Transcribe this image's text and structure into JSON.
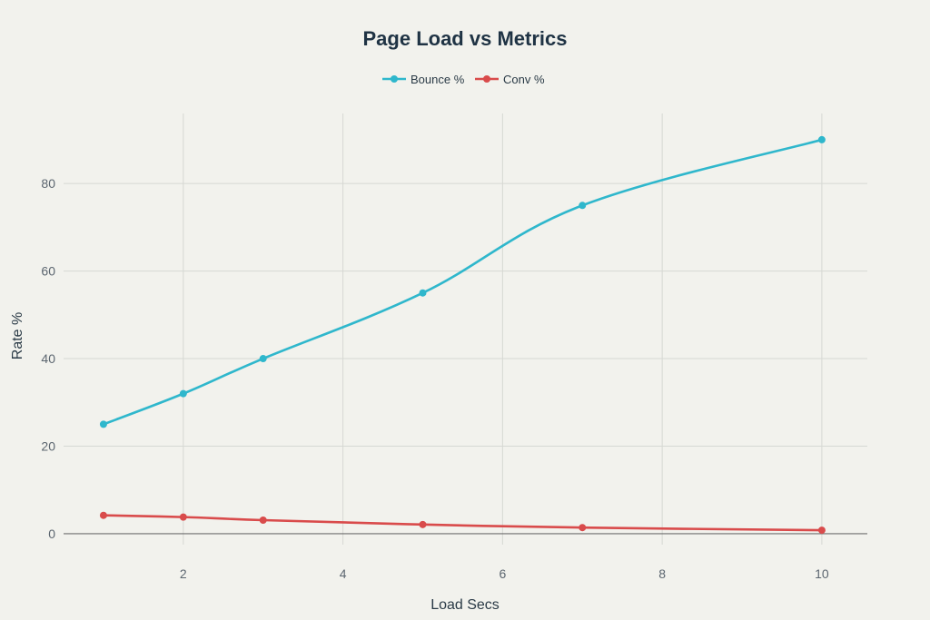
{
  "chart_data": {
    "type": "line",
    "title": "Page Load vs Metrics",
    "xlabel": "Load Secs",
    "ylabel": "Rate %",
    "x": [
      1,
      2,
      3,
      5,
      7,
      10
    ],
    "series": [
      {
        "name": "Bounce %",
        "color": "#2fb7cc",
        "values": [
          25,
          32,
          40,
          55,
          75,
          90
        ]
      },
      {
        "name": "Conv %",
        "color": "#d94b4b",
        "values": [
          4.2,
          3.8,
          3.1,
          2.1,
          1.4,
          0.8
        ]
      }
    ],
    "x_ticks": [
      2,
      4,
      6,
      8,
      10
    ],
    "y_ticks": [
      0,
      20,
      40,
      60,
      80
    ],
    "xlim": [
      0.5,
      10.57
    ],
    "ylim": [
      -2.5,
      96
    ],
    "grid": true,
    "legend_position": "top-center"
  }
}
